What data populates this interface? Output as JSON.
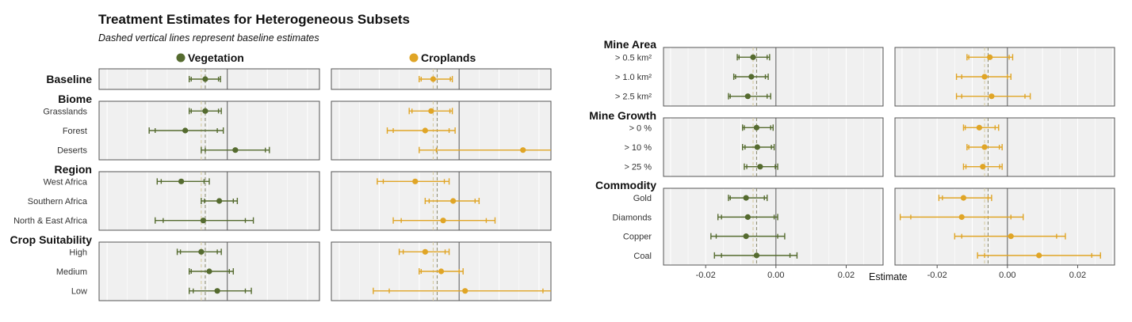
{
  "title": "Treatment Estimates for Heterogeneous Subsets",
  "subtitle": "Dashed vertical lines represent baseline estimates",
  "colors": {
    "Vegetation": "#556b2f",
    "Croplands": "#e0a526",
    "panel_bg": "#f0f0f0",
    "panel_border": "#555555",
    "zero_line": "#555555"
  },
  "legend": [
    "Vegetation",
    "Croplands"
  ],
  "xlabel": "Estimate",
  "x_ticks": [
    -0.02,
    0.0,
    0.02
  ],
  "x_tick_labels": [
    "-0.02",
    "0.00",
    "0.02"
  ],
  "xlim_left_panels": [
    -0.032,
    0.023
  ],
  "xlim_right_panels": [
    -0.032,
    0.0305
  ],
  "chart_data": [
    {
      "type": "scatter",
      "name": "left-panels",
      "title": "Treatment Estimates for Heterogeneous Subsets",
      "subtitle": "Dashed vertical lines represent baseline estimates",
      "xlim": [
        -0.032,
        0.023
      ],
      "grid": true,
      "legend_placement": "top",
      "baseline_dashed": {
        "Vegetation": [
          -0.0065,
          -0.0055
        ],
        "Croplands": [
          -0.0065,
          -0.0055
        ]
      },
      "groups": [
        {
          "name": "Baseline",
          "rows": [
            {
              "label": "",
              "est": {
                "Vegetation": -0.0055,
                "Croplands": -0.0065
              },
              "ci95": {
                "Vegetation": [
                  -0.0095,
                  -0.0017
                ],
                "Croplands": [
                  -0.01,
                  -0.0017
                ]
              },
              "ci90": {
                "Vegetation": [
                  -0.009,
                  -0.0022
                ],
                "Croplands": [
                  -0.0095,
                  -0.0022
                ]
              }
            }
          ]
        },
        {
          "name": "Biome",
          "rows": [
            {
              "label": "Grasslands",
              "est": {
                "Vegetation": -0.0055,
                "Croplands": -0.007
              },
              "ci95": {
                "Vegetation": [
                  -0.0095,
                  -0.0015
                ],
                "Croplands": [
                  -0.0125,
                  -0.0017
                ]
              },
              "ci90": {
                "Vegetation": [
                  -0.009,
                  -0.0022
                ],
                "Croplands": [
                  -0.0118,
                  -0.0023
                ]
              }
            },
            {
              "label": "Forest",
              "est": {
                "Vegetation": -0.0105,
                "Croplands": -0.0085
              },
              "ci95": {
                "Vegetation": [
                  -0.0195,
                  -0.001
                ],
                "Croplands": [
                  -0.018,
                  -0.001
                ]
              },
              "ci90": {
                "Vegetation": [
                  -0.018,
                  -0.0025
                ],
                "Croplands": [
                  -0.0165,
                  -0.0025
                ]
              }
            },
            {
              "label": "Deserts",
              "est": {
                "Vegetation": 0.002,
                "Croplands": 0.016
              },
              "ci95": {
                "Vegetation": [
                  -0.0065,
                  0.0105
                ],
                "Croplands": [
                  -0.01,
                  0.032
                ]
              },
              "ci90": {
                "Vegetation": [
                  -0.0055,
                  0.0095
                ],
                "Croplands": [
                  -0.0057,
                  0.032
                ]
              }
            }
          ]
        },
        {
          "name": "Region",
          "rows": [
            {
              "label": "West Africa",
              "est": {
                "Vegetation": -0.0115,
                "Croplands": -0.011
              },
              "ci95": {
                "Vegetation": [
                  -0.0175,
                  -0.0045
                ],
                "Croplands": [
                  -0.0205,
                  -0.0025
                ]
              },
              "ci90": {
                "Vegetation": [
                  -0.0165,
                  -0.0058
                ],
                "Croplands": [
                  -0.019,
                  -0.0037
                ]
              }
            },
            {
              "label": "Southern Africa",
              "est": {
                "Vegetation": -0.002,
                "Croplands": -0.0015
              },
              "ci95": {
                "Vegetation": [
                  -0.0065,
                  0.0025
                ],
                "Croplands": [
                  -0.0085,
                  0.005
                ]
              },
              "ci90": {
                "Vegetation": [
                  -0.0057,
                  0.0015
                ],
                "Croplands": [
                  -0.0075,
                  0.004
                ]
              }
            },
            {
              "label": "North & East Africa",
              "est": {
                "Vegetation": -0.006,
                "Croplands": -0.004
              },
              "ci95": {
                "Vegetation": [
                  -0.018,
                  0.0065
                ],
                "Croplands": [
                  -0.0165,
                  0.009
                ]
              },
              "ci90": {
                "Vegetation": [
                  -0.016,
                  0.0045
                ],
                "Croplands": [
                  -0.0145,
                  0.0068
                ]
              }
            }
          ]
        },
        {
          "name": "Crop Suitability",
          "rows": [
            {
              "label": "High",
              "est": {
                "Vegetation": -0.0065,
                "Croplands": -0.0085
              },
              "ci95": {
                "Vegetation": [
                  -0.0125,
                  -0.0015
                ],
                "Croplands": [
                  -0.015,
                  -0.0025
                ]
              },
              "ci90": {
                "Vegetation": [
                  -0.0117,
                  -0.0025
                ],
                "Croplands": [
                  -0.014,
                  -0.0035
                ]
              }
            },
            {
              "label": "Medium",
              "est": {
                "Vegetation": -0.0045,
                "Croplands": -0.0045
              },
              "ci95": {
                "Vegetation": [
                  -0.0095,
                  0.0015
                ],
                "Croplands": [
                  -0.01,
                  0.001
                ]
              },
              "ci90": {
                "Vegetation": [
                  -0.009,
                  0.0005
                ],
                "Croplands": [
                  -0.0095,
                  0
                ]
              }
            },
            {
              "label": "Low",
              "est": {
                "Vegetation": -0.0025,
                "Croplands": 0.0015
              },
              "ci95": {
                "Vegetation": [
                  -0.0095,
                  0.006
                ],
                "Croplands": [
                  -0.0215,
                  0.024
                ]
              },
              "ci90": {
                "Vegetation": [
                  -0.0085,
                  0.0045
                ],
                "Croplands": [
                  -0.0175,
                  0.021
                ]
              }
            }
          ]
        }
      ]
    },
    {
      "type": "scatter",
      "name": "right-panels",
      "xlabel": "Estimate",
      "xlim": [
        -0.032,
        0.0305
      ],
      "grid": true,
      "baseline_dashed": {
        "Vegetation": [
          -0.0065,
          -0.0055
        ],
        "Croplands": [
          -0.0065,
          -0.0055
        ]
      },
      "groups": [
        {
          "name": "Mine Area",
          "rows": [
            {
              "label": "> 0.5 km²",
              "est": {
                "Vegetation": -0.0065,
                "Croplands": -0.005
              },
              "ci95": {
                "Vegetation": [
                  -0.011,
                  -0.0018
                ],
                "Croplands": [
                  -0.0115,
                  0.0015
                ]
              },
              "ci90": {
                "Vegetation": [
                  -0.0105,
                  -0.0025
                ],
                "Croplands": [
                  -0.011,
                  0.0005
                ]
              }
            },
            {
              "label": "> 1.0 km²",
              "est": {
                "Vegetation": -0.007,
                "Croplands": -0.0065
              },
              "ci95": {
                "Vegetation": [
                  -0.012,
                  -0.0022
                ],
                "Croplands": [
                  -0.0145,
                  0.001
                ]
              },
              "ci90": {
                "Vegetation": [
                  -0.0115,
                  -0.003
                ],
                "Croplands": [
                  -0.013,
                  0
                ]
              }
            },
            {
              "label": "> 2.5 km²",
              "est": {
                "Vegetation": -0.008,
                "Croplands": -0.0045
              },
              "ci95": {
                "Vegetation": [
                  -0.0135,
                  -0.0015
                ],
                "Croplands": [
                  -0.0145,
                  0.0065
                ]
              },
              "ci90": {
                "Vegetation": [
                  -0.013,
                  -0.0025
                ],
                "Croplands": [
                  -0.013,
                  0.005
                ]
              }
            }
          ]
        },
        {
          "name": "Mine Growth",
          "rows": [
            {
              "label": "> 0 %",
              "est": {
                "Vegetation": -0.0055,
                "Croplands": -0.008
              },
              "ci95": {
                "Vegetation": [
                  -0.0095,
                  -0.0008
                ],
                "Croplands": [
                  -0.0125,
                  -0.0025
                ]
              },
              "ci90": {
                "Vegetation": [
                  -0.009,
                  -0.0015
                ],
                "Croplands": [
                  -0.012,
                  -0.0035
                ]
              }
            },
            {
              "label": "> 10 %",
              "est": {
                "Vegetation": -0.0053,
                "Croplands": -0.0065
              },
              "ci95": {
                "Vegetation": [
                  -0.0095,
                  -0.0005
                ],
                "Croplands": [
                  -0.0115,
                  -0.0015
                ]
              },
              "ci90": {
                "Vegetation": [
                  -0.0088,
                  -0.0013
                ],
                "Croplands": [
                  -0.011,
                  -0.0023
                ]
              }
            },
            {
              "label": "> 25 %",
              "est": {
                "Vegetation": -0.0045,
                "Croplands": -0.007
              },
              "ci95": {
                "Vegetation": [
                  -0.009,
                  0.0005
                ],
                "Croplands": [
                  -0.0125,
                  -0.0015
                ]
              },
              "ci90": {
                "Vegetation": [
                  -0.0083,
                  -0.0002
                ],
                "Croplands": [
                  -0.0118,
                  -0.0022
                ]
              }
            }
          ]
        },
        {
          "name": "Commodity",
          "rows": [
            {
              "label": "Gold",
              "est": {
                "Vegetation": -0.0085,
                "Croplands": -0.0125
              },
              "ci95": {
                "Vegetation": [
                  -0.0135,
                  -0.0025
                ],
                "Croplands": [
                  -0.0195,
                  -0.0045
                ]
              },
              "ci90": {
                "Vegetation": [
                  -0.013,
                  -0.0033
                ],
                "Croplands": [
                  -0.0185,
                  -0.0055
                ]
              }
            },
            {
              "label": "Diamonds",
              "est": {
                "Vegetation": -0.008,
                "Croplands": -0.013
              },
              "ci95": {
                "Vegetation": [
                  -0.0165,
                  0.0005
                ],
                "Croplands": [
                  -0.0305,
                  0.0045
                ]
              },
              "ci90": {
                "Vegetation": [
                  -0.0155,
                  -0.0005
                ],
                "Croplands": [
                  -0.0275,
                  0.001
                ]
              }
            },
            {
              "label": "Copper",
              "est": {
                "Vegetation": -0.0085,
                "Croplands": 0.001
              },
              "ci95": {
                "Vegetation": [
                  -0.0185,
                  0.0025
                ],
                "Croplands": [
                  -0.015,
                  0.0165
                ]
              },
              "ci90": {
                "Vegetation": [
                  -0.017,
                  0.0005
                ],
                "Croplands": [
                  -0.013,
                  0.014
                ]
              }
            },
            {
              "label": "Coal",
              "est": {
                "Vegetation": -0.0055,
                "Croplands": 0.009
              },
              "ci95": {
                "Vegetation": [
                  -0.0175,
                  0.006
                ],
                "Croplands": [
                  -0.0085,
                  0.0265
                ]
              },
              "ci90": {
                "Vegetation": [
                  -0.0155,
                  0.004
                ],
                "Croplands": [
                  -0.0065,
                  0.024
                ]
              }
            }
          ]
        }
      ]
    }
  ]
}
